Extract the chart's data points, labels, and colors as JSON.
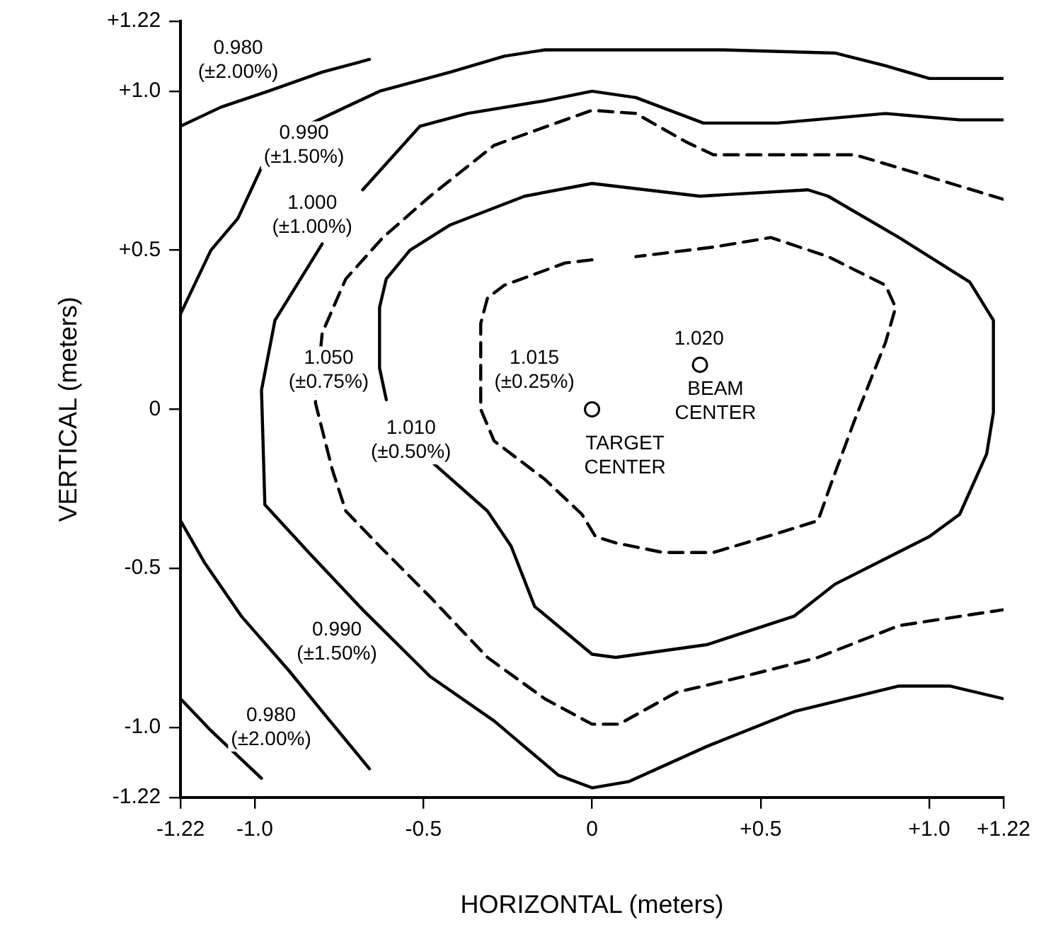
{
  "chart_data": {
    "type": "line",
    "xlabel": "HORIZONTAL (meters)",
    "ylabel": "VERTICAL (meters)",
    "xlim": [
      -1.22,
      1.22
    ],
    "ylim": [
      -1.22,
      1.22
    ],
    "xticks": [
      -1.22,
      {
        "value": -1.0,
        "label": "-1.0"
      },
      -0.5,
      0,
      {
        "value": 0.5,
        "label": "+0.5"
      },
      {
        "value": 1.0,
        "label": "+1.0"
      },
      {
        "value": 1.22,
        "label": "+1.22"
      }
    ],
    "yticks": [
      -1.22,
      {
        "value": -1.0,
        "label": "-1.0"
      },
      -0.5,
      0,
      {
        "value": 0.5,
        "label": "+0.5"
      },
      {
        "value": 1.0,
        "label": "+1.0"
      },
      {
        "value": 1.22,
        "label": "+1.22"
      }
    ],
    "grid": false,
    "legend": false,
    "marker": "none",
    "series": [
      {
        "color": "#000000",
        "line_style": "solid",
        "x": [
          -1.22,
          -1.1,
          -0.96,
          -0.8,
          -0.66
        ],
        "values": [
          0.89,
          0.95,
          1.0,
          1.06,
          1.1
        ]
      },
      {
        "color": "#000000",
        "line_style": "solid",
        "x": [
          -1.22,
          -1.13,
          -1.05,
          -0.98,
          -0.9,
          -0.83,
          -0.63,
          -0.42,
          -0.26,
          -0.14,
          0.08,
          0.39,
          0.72,
          0.87,
          1.0,
          1.22
        ],
        "values": [
          0.3,
          0.5,
          0.6,
          0.76,
          null,
          0.9,
          1.0,
          1.06,
          1.11,
          1.13,
          1.13,
          1.13,
          1.12,
          1.08,
          1.04,
          1.04
        ]
      },
      {
        "color": "#000000",
        "line_style": "solid",
        "x": [
          1.22,
          1.09,
          0.87,
          0.55,
          0.33,
          0.13,
          0,
          -0.14,
          -0.37,
          -0.51,
          -0.68,
          -0.74,
          -0.8,
          -0.94,
          -0.98,
          -0.97,
          -0.84,
          -0.68,
          -0.48,
          -0.29,
          -0.1,
          0,
          0.11,
          0.34,
          0.6,
          0.91,
          1.06,
          1.22
        ],
        "values": [
          0.91,
          0.91,
          0.93,
          0.9,
          0.9,
          0.98,
          1.0,
          0.97,
          0.93,
          0.89,
          0.69,
          null,
          0.52,
          0.28,
          0.06,
          -0.3,
          -0.45,
          -0.63,
          -0.84,
          -0.98,
          -1.15,
          -1.19,
          -1.17,
          -1.06,
          -0.95,
          -0.87,
          -0.87,
          -0.91
        ]
      },
      {
        "color": "#000000",
        "line_style": "solid",
        "x": [
          -1.22,
          -1.15,
          -1.04,
          -0.9,
          -0.8,
          -0.66
        ],
        "values": [
          -0.35,
          -0.48,
          -0.65,
          -0.82,
          -0.95,
          -1.13
        ]
      },
      {
        "color": "#000000",
        "line_style": "solid",
        "x": [
          -1.22,
          -1.13,
          -0.98
        ],
        "values": [
          -0.91,
          -1.01,
          -1.16
        ]
      },
      {
        "color": "#000000",
        "line_style": "dashed",
        "x": [
          1.22,
          0.97,
          0.78,
          0.55,
          0.36,
          0.28,
          0.13,
          0,
          -0.08,
          -0.29,
          -0.48,
          -0.62,
          -0.73,
          -0.8,
          -0.82,
          -0.77,
          -0.73,
          -0.63,
          -0.48,
          -0.31,
          -0.14,
          0,
          0.08,
          0.25,
          0.45,
          0.67,
          0.91,
          1.22
        ],
        "values": [
          0.66,
          0.74,
          0.8,
          0.8,
          0.8,
          0.84,
          0.93,
          0.94,
          0.91,
          0.83,
          0.67,
          0.54,
          0.41,
          0.24,
          0.02,
          -0.19,
          -0.32,
          -0.43,
          -0.59,
          -0.78,
          -0.91,
          -0.99,
          -0.99,
          -0.89,
          -0.84,
          -0.78,
          -0.68,
          -0.63
        ]
      },
      {
        "color": "#000000",
        "line_style": "solid",
        "x": [
          0,
          -0.2,
          -0.42,
          -0.54,
          -0.61,
          -0.63,
          -0.63,
          -0.61,
          -0.54,
          -0.47,
          -0.31,
          -0.24,
          -0.17,
          0,
          0.07,
          0.34,
          0.6,
          0.72,
          1.0,
          1.09,
          1.17,
          1.19,
          1.19,
          1.12,
          0.91,
          0.7,
          0.64,
          0.32,
          0
        ],
        "values": [
          0.71,
          0.67,
          0.58,
          0.5,
          0.41,
          0.32,
          0.13,
          0.03,
          null,
          -0.17,
          -0.32,
          -0.43,
          -0.62,
          -0.77,
          -0.78,
          -0.74,
          -0.65,
          -0.55,
          -0.4,
          -0.33,
          -0.14,
          -0.01,
          0.28,
          0.4,
          0.54,
          0.67,
          0.69,
          0.67,
          0.71
        ]
      },
      {
        "color": "#000000",
        "line_style": "dashed",
        "x": [
          0,
          -0.08,
          -0.26,
          -0.31,
          -0.33,
          -0.33,
          -0.29,
          -0.14,
          -0.03,
          0.01,
          0.07,
          0.21,
          0.36,
          0.55,
          0.67,
          0.71,
          0.78,
          0.87,
          0.9,
          0.87,
          0.7,
          0.53,
          0.36,
          0.13
        ],
        "values": [
          0.47,
          0.46,
          0.39,
          0.35,
          0.27,
          0.0,
          -0.1,
          -0.22,
          -0.33,
          -0.4,
          -0.42,
          -0.45,
          -0.45,
          -0.39,
          -0.35,
          -0.23,
          -0.03,
          0.21,
          0.32,
          0.39,
          0.48,
          0.54,
          0.51,
          0.48
        ]
      },
      {
        "type": "scatter",
        "color": "#000000",
        "marker": "circle",
        "x": [
          0,
          0.32
        ],
        "values": [
          0,
          0.14
        ]
      }
    ],
    "annotations": [
      "0.980\n(±2.00%)",
      "0.990\n(±1.50%)",
      "1.000\n(±1.00%)",
      "1.050\n(±0.75%)",
      "1.015\n(±0.25%)",
      "1.010\n(±0.50%)",
      "0.990\n(±1.50%)",
      "0.980\n(±2.00%)",
      "1.020",
      "BEAM\nCENTER",
      "TARGET\nCENTER"
    ]
  }
}
